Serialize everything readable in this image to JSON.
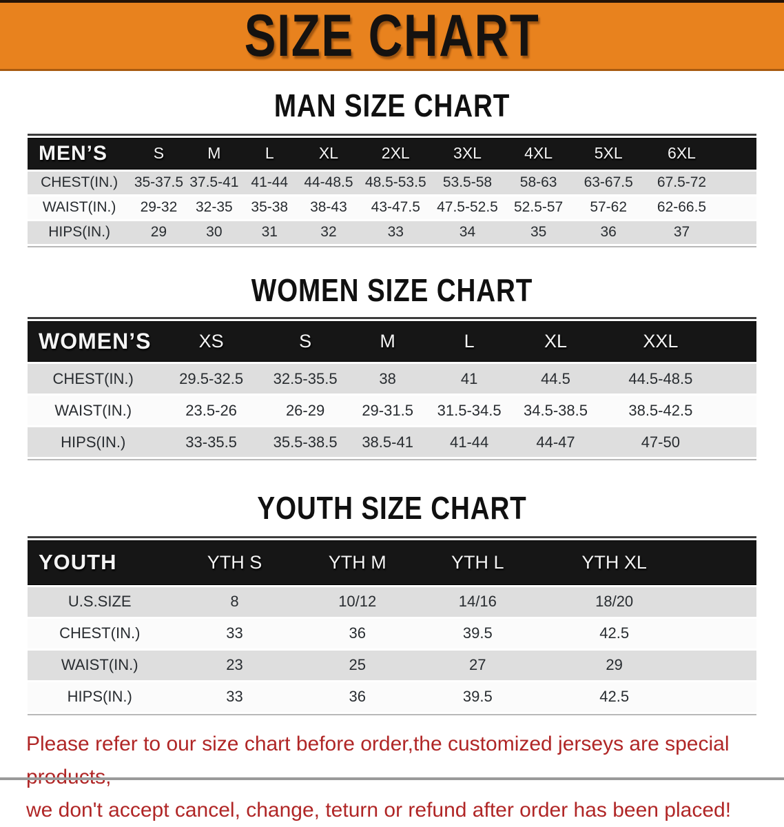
{
  "banner": {
    "title": "SIZE CHART",
    "bg_color": "#E8821E",
    "text_color": "#151210"
  },
  "colors": {
    "table_header_bg": "#161616",
    "row_gray": "#DEDEDE",
    "row_white": "#FBFBFB",
    "disclaimer_red": "#B02626"
  },
  "chart_data": [
    {
      "type": "table",
      "title": "MAN SIZE CHART",
      "corner": "MEN’S",
      "columns": [
        "S",
        "M",
        "L",
        "XL",
        "2XL",
        "3XL",
        "4XL",
        "5XL",
        "6XL"
      ],
      "rows": [
        {
          "label": "CHEST(IN.)",
          "values": [
            "35-37.5",
            "37.5-41",
            "41-44",
            "44-48.5",
            "48.5-53.5",
            "53.5-58",
            "58-63",
            "63-67.5",
            "67.5-72"
          ]
        },
        {
          "label": "WAIST(IN.)",
          "values": [
            "29-32",
            "32-35",
            "35-38",
            "38-43",
            "43-47.5",
            "47.5-52.5",
            "52.5-57",
            "57-62",
            "62-66.5"
          ]
        },
        {
          "label": "HIPS(IN.)",
          "values": [
            "29",
            "30",
            "31",
            "32",
            "33",
            "34",
            "35",
            "36",
            "37"
          ]
        }
      ]
    },
    {
      "type": "table",
      "title": "WOMEN SIZE CHART",
      "corner": "WOMEN’S",
      "columns": [
        "XS",
        "S",
        "M",
        "L",
        "XL",
        "XXL"
      ],
      "rows": [
        {
          "label": "CHEST(IN.)",
          "values": [
            "29.5-32.5",
            "32.5-35.5",
            "38",
            "41",
            "44.5",
            "44.5-48.5"
          ]
        },
        {
          "label": "WAIST(IN.)",
          "values": [
            "23.5-26",
            "26-29",
            "29-31.5",
            "31.5-34.5",
            "34.5-38.5",
            "38.5-42.5"
          ]
        },
        {
          "label": "HIPS(IN.)",
          "values": [
            "33-35.5",
            "35.5-38.5",
            "38.5-41",
            "41-44",
            "44-47",
            "47-50"
          ]
        }
      ]
    },
    {
      "type": "table",
      "title": "YOUTH SIZE CHART",
      "corner": "YOUTH",
      "columns": [
        "YTH S",
        "YTH M",
        "YTH L",
        "YTH XL"
      ],
      "rows": [
        {
          "label": "U.S.SIZE",
          "values": [
            "8",
            "10/12",
            "14/16",
            "18/20"
          ]
        },
        {
          "label": "CHEST(IN.)",
          "values": [
            "33",
            "36",
            "39.5",
            "42.5"
          ]
        },
        {
          "label": "WAIST(IN.)",
          "values": [
            "23",
            "25",
            "27",
            "29"
          ]
        },
        {
          "label": "HIPS(IN.)",
          "values": [
            "33",
            "36",
            "39.5",
            "42.5"
          ]
        }
      ]
    }
  ],
  "men": {
    "heading": "MAN SIZE CHART"
  },
  "women": {
    "heading": "WOMEN SIZE CHART"
  },
  "youth": {
    "heading": "YOUTH SIZE CHART"
  },
  "disclaimer": {
    "line1": "Please refer to our size chart before order,the customized jerseys are special products,",
    "line2": "we don't accept cancel, change, teturn or refund after order has been placed!"
  }
}
